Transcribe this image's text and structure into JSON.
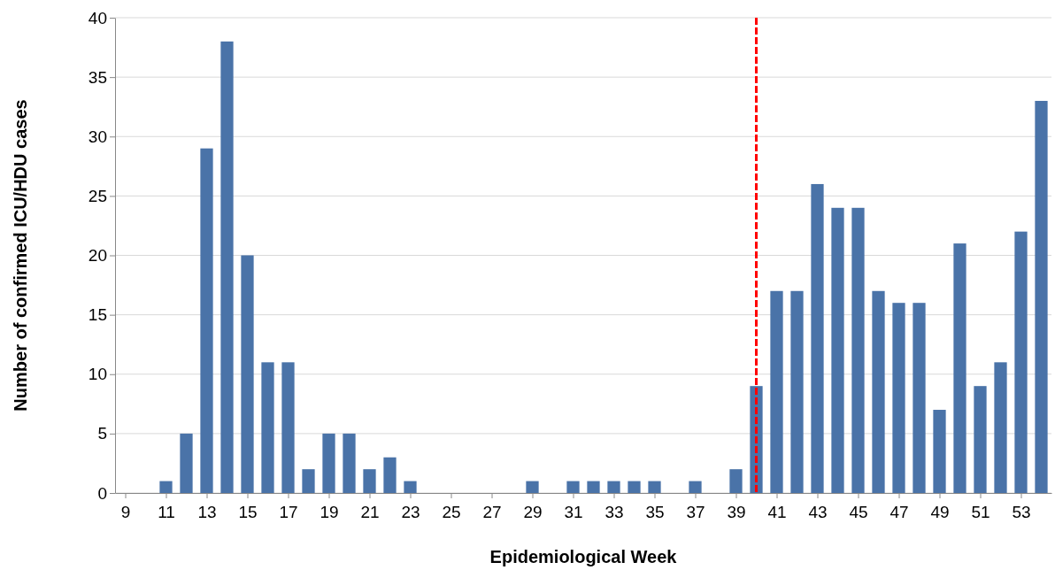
{
  "chart_data": {
    "type": "bar",
    "xlabel": "Epidemiological Week",
    "ylabel": "Number of confirmed ICU/HDU cases",
    "x": [
      9,
      10,
      11,
      12,
      13,
      14,
      15,
      16,
      17,
      18,
      19,
      20,
      21,
      22,
      23,
      24,
      25,
      26,
      27,
      28,
      29,
      30,
      31,
      32,
      33,
      34,
      35,
      36,
      37,
      38,
      39,
      40,
      41,
      42,
      43,
      44,
      45,
      46,
      47,
      48,
      49,
      50,
      51,
      52,
      53,
      54
    ],
    "values": [
      0,
      0,
      1,
      5,
      29,
      38,
      20,
      11,
      11,
      2,
      5,
      5,
      2,
      3,
      1,
      0,
      0,
      0,
      0,
      0,
      1,
      0,
      1,
      1,
      1,
      1,
      1,
      0,
      1,
      0,
      2,
      9,
      17,
      17,
      26,
      24,
      24,
      17,
      16,
      16,
      7,
      21,
      9,
      11,
      22,
      33
    ],
    "color": "#4a73a8",
    "xlim": [
      8.5,
      54.5
    ],
    "xticks": [
      9,
      11,
      13,
      15,
      17,
      19,
      21,
      23,
      25,
      27,
      29,
      31,
      33,
      35,
      37,
      39,
      41,
      43,
      45,
      47,
      49,
      51,
      53
    ],
    "ylim": [
      0,
      40
    ],
    "yticks": [
      0,
      5,
      10,
      15,
      20,
      25,
      30,
      35,
      40
    ],
    "grid": "y",
    "ref_lines": [
      {
        "axis": "x",
        "value": 40,
        "color": "#ff0000",
        "line_style": "dashed"
      }
    ]
  }
}
